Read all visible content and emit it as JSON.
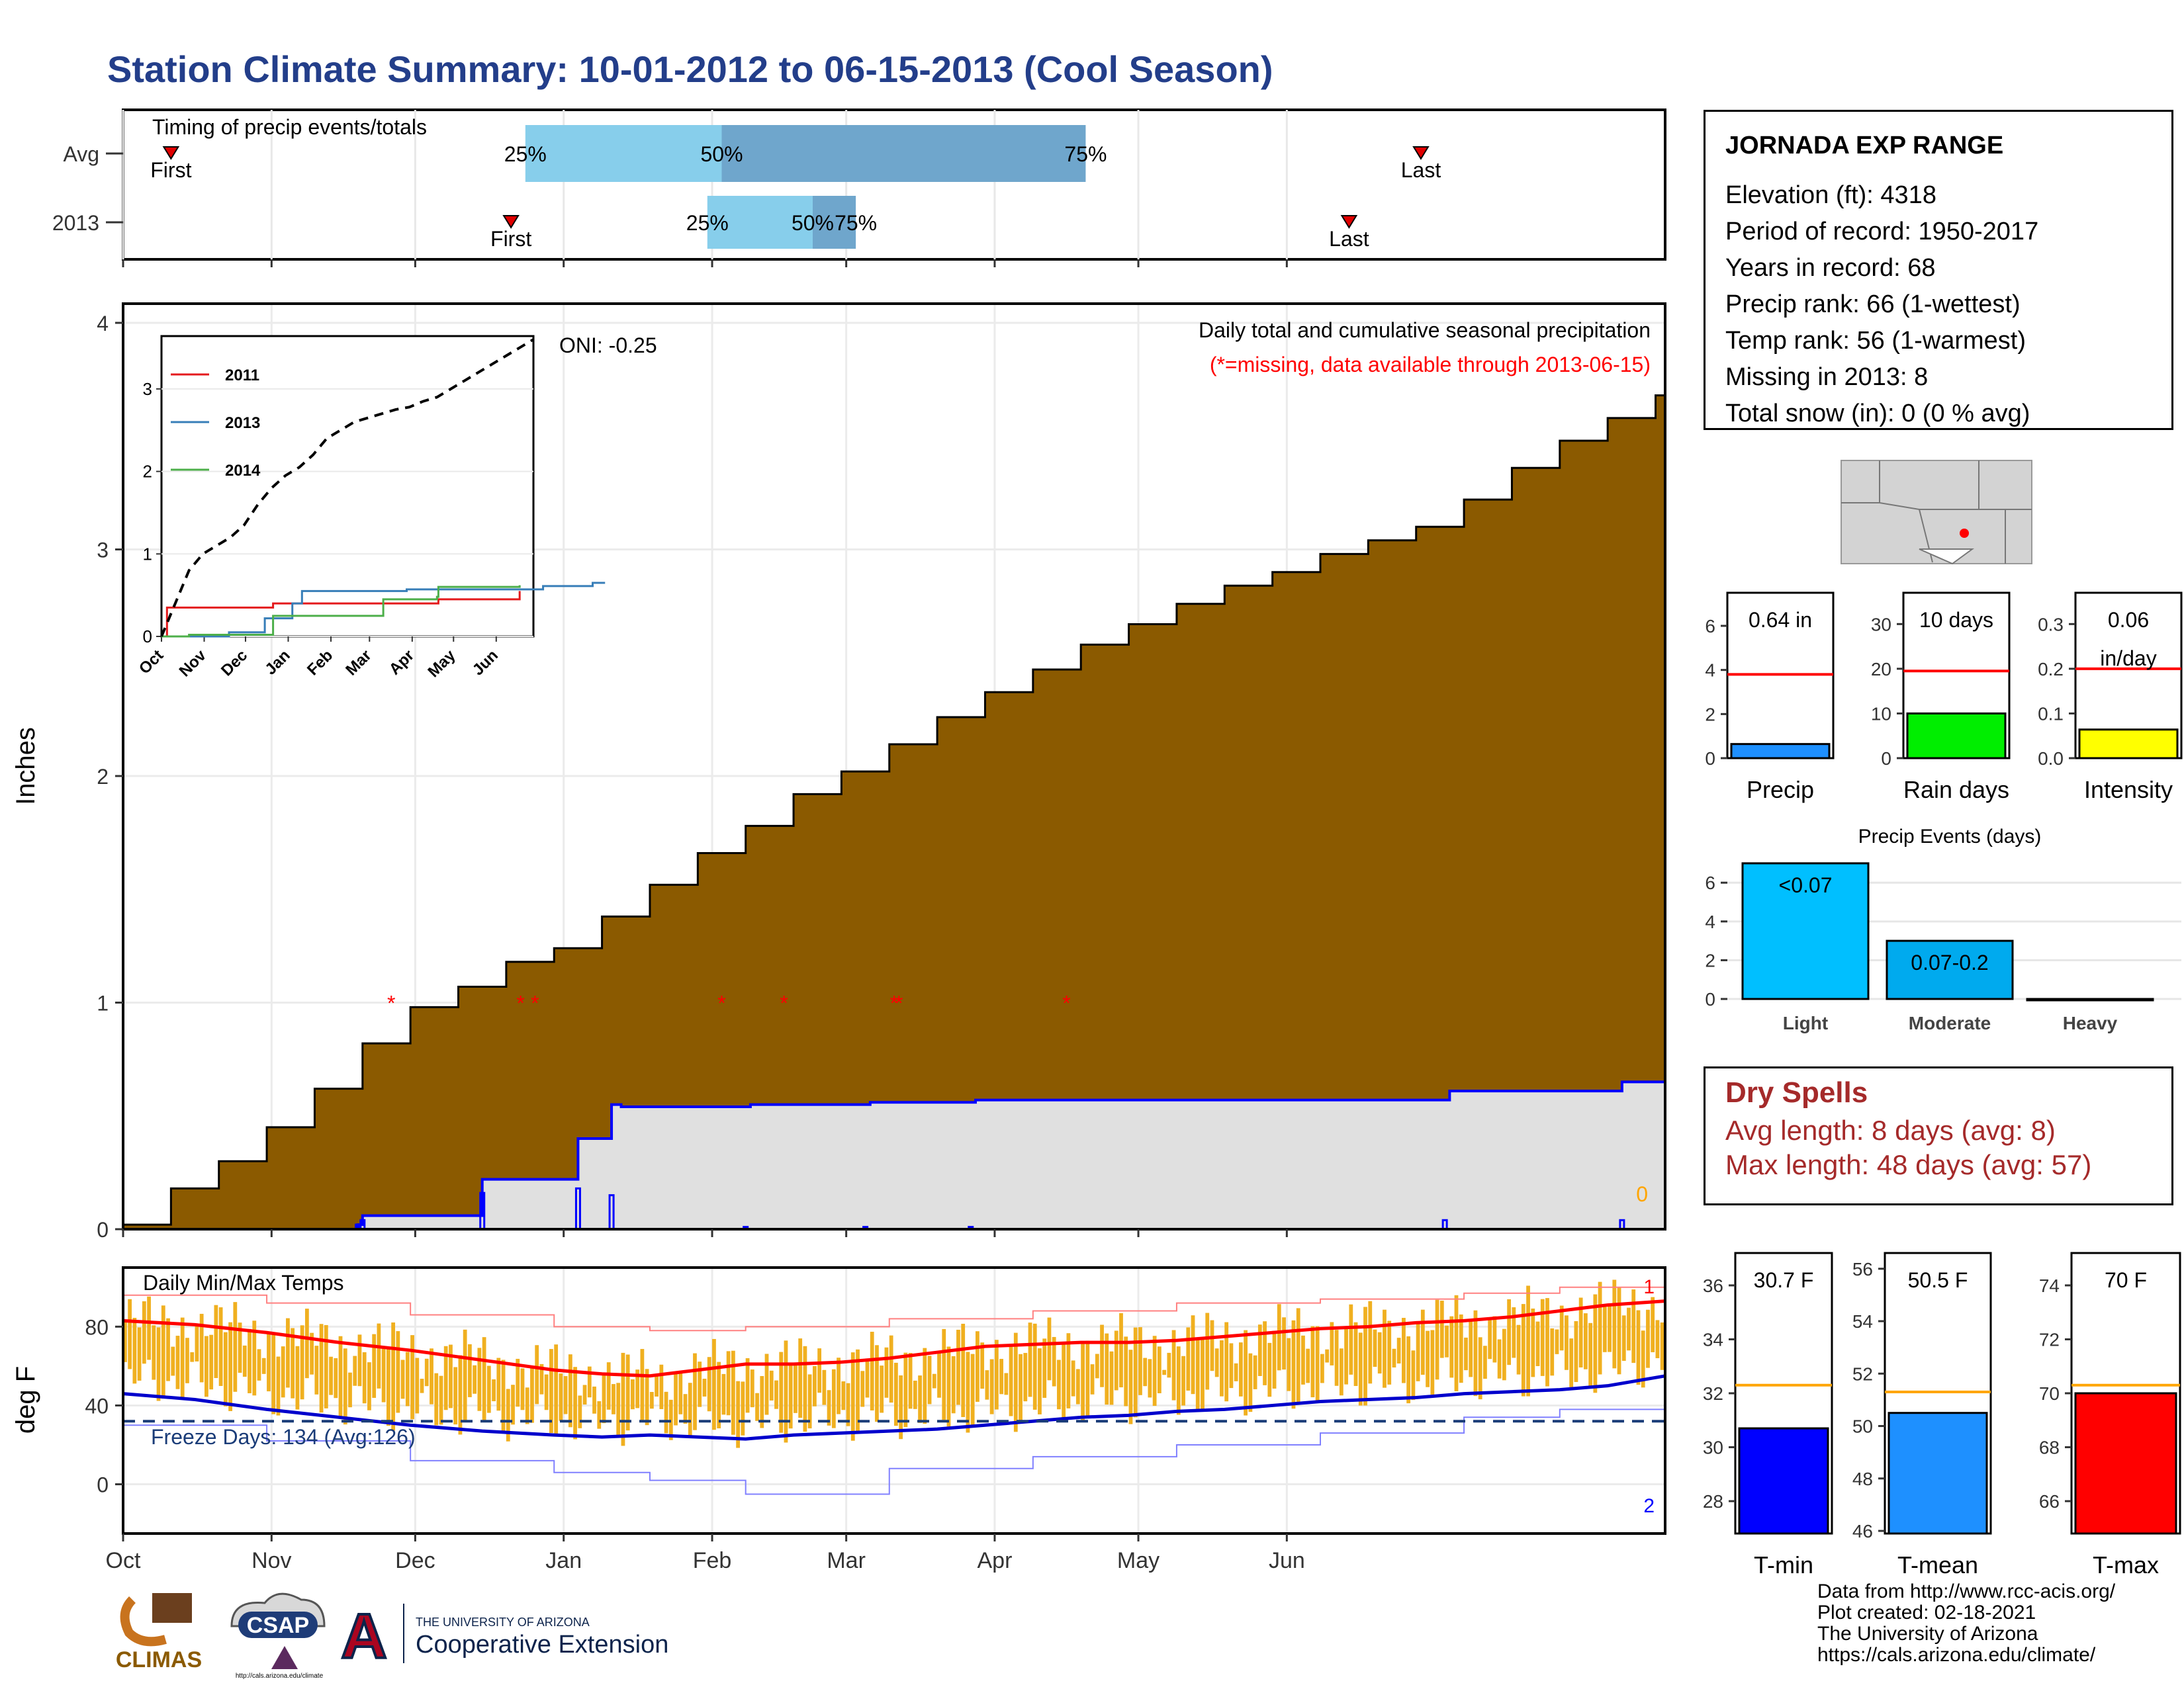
{
  "page_title": "Station Climate Summary: 10-01-2012 to 06-15-2013 (Cool Season)",
  "station": {
    "name": "JORNADA EXP RANGE",
    "lines": [
      "Elevation (ft): 4318",
      "Period of record: 1950-2017",
      "Years in record: 68",
      "Precip rank: 66 (1-wettest)",
      "Temp rank: 56 (1-warmest)",
      "Missing in 2013: 8",
      "Total snow (in): 0 (0 % avg)"
    ]
  },
  "dry_spells": {
    "title": "Dry Spells",
    "avg_length": "Avg length: 8 days (avg: 8)",
    "max_length": "Max length: 48 days (avg: 57)"
  },
  "credits": [
    "Data from http://www.rcc-acis.org/",
    "Plot created: 02-18-2021",
    "The University of Arizona",
    "https://cals.arizona.edu/climate/"
  ],
  "logos": {
    "climas": "CLIMAS",
    "csap": "CSAP",
    "csap_url": "http://cals.arizona.edu/climate",
    "ua_letter": "A",
    "ua_line1": "THE UNIVERSITY OF ARIZONA",
    "ua_line2": "Cooperative Extension"
  },
  "colors": {
    "title": "#233e8a",
    "cumulative_fill": "#8b5a00",
    "avg_fill": "#e0e0e0",
    "avg_line": "#0000ff",
    "tmax": "#ff0000",
    "tmin": "#0000cc",
    "temp_bars": "#f0b020",
    "light_blue": "#87ceeb",
    "steel_blue": "#6fa6cc"
  },
  "month_labels": [
    "Oct",
    "Nov",
    "Dec",
    "Jan",
    "Feb",
    "Mar",
    "Apr",
    "May",
    "Jun"
  ],
  "chart_data": [
    {
      "id": "timing",
      "type": "bar",
      "title": "Timing of precip events/totals",
      "x_unit": "day of season (0 = Oct 1, 2012)",
      "rows": [
        {
          "name": "Avg",
          "first": 10,
          "p25": 84,
          "p50": 125,
          "p75": 201,
          "last": 271,
          "labels": [
            "First",
            "25%",
            "50%",
            "75%",
            "Last"
          ]
        },
        {
          "name": "2013",
          "first": 81,
          "p25": 122,
          "p50": 144,
          "p75": 153,
          "last": 256,
          "labels": [
            "First",
            "25%",
            "50%",
            "75%",
            "Last"
          ]
        }
      ]
    },
    {
      "id": "precip",
      "type": "area",
      "title": "Daily total and cumulative seasonal precipitation",
      "subtitle": "(*=missing, data available through 2013-06-15)",
      "ylabel": "Inches",
      "ylim": [
        0,
        4
      ],
      "yticks": [
        0,
        1,
        2,
        3,
        4
      ],
      "annotation": "ONI: -0.25",
      "corner_label": "0",
      "avg_cumulative": [
        [
          0,
          0.02
        ],
        [
          10,
          0.18
        ],
        [
          20,
          0.3
        ],
        [
          30,
          0.45
        ],
        [
          40,
          0.62
        ],
        [
          50,
          0.82
        ],
        [
          60,
          0.98
        ],
        [
          70,
          1.07
        ],
        [
          80,
          1.18
        ],
        [
          90,
          1.24
        ],
        [
          100,
          1.38
        ],
        [
          110,
          1.52
        ],
        [
          120,
          1.66
        ],
        [
          130,
          1.78
        ],
        [
          140,
          1.92
        ],
        [
          150,
          2.02
        ],
        [
          160,
          2.14
        ],
        [
          170,
          2.26
        ],
        [
          180,
          2.37
        ],
        [
          190,
          2.47
        ],
        [
          200,
          2.58
        ],
        [
          210,
          2.67
        ],
        [
          220,
          2.76
        ],
        [
          230,
          2.84
        ],
        [
          240,
          2.9
        ],
        [
          250,
          2.98
        ],
        [
          260,
          3.04
        ],
        [
          270,
          3.1
        ],
        [
          280,
          3.22
        ],
        [
          290,
          3.36
        ],
        [
          300,
          3.48
        ],
        [
          310,
          3.58
        ],
        [
          320,
          3.68
        ],
        [
          322,
          3.7
        ]
      ],
      "obs_cumulative": [
        [
          0,
          0
        ],
        [
          40,
          0
        ],
        [
          49,
          0.02
        ],
        [
          50,
          0.06
        ],
        [
          74,
          0.06
        ],
        [
          75,
          0.22
        ],
        [
          94,
          0.22
        ],
        [
          95,
          0.4
        ],
        [
          101,
          0.4
        ],
        [
          102,
          0.55
        ],
        [
          103,
          0.55
        ],
        [
          104,
          0.54
        ],
        [
          130,
          0.54
        ],
        [
          131,
          0.55
        ],
        [
          155,
          0.55
        ],
        [
          156,
          0.56
        ],
        [
          177,
          0.56
        ],
        [
          178,
          0.57
        ],
        [
          276,
          0.57
        ],
        [
          277,
          0.61
        ],
        [
          312,
          0.61
        ],
        [
          313,
          0.65
        ],
        [
          322,
          0.65
        ]
      ],
      "daily_precip": [
        [
          49,
          0.02
        ],
        [
          50,
          0.04
        ],
        [
          75,
          0.16
        ],
        [
          95,
          0.18
        ],
        [
          102,
          0.15
        ],
        [
          130,
          0.01
        ],
        [
          155,
          0.01
        ],
        [
          177,
          0.01
        ],
        [
          276,
          0.04
        ],
        [
          313,
          0.04
        ]
      ],
      "missing_days": [
        56,
        83,
        86,
        125,
        138,
        161,
        162,
        197
      ]
    },
    {
      "id": "precip-inset",
      "type": "line",
      "xticks": [
        "Oct",
        "Nov",
        "Dec",
        "Jan",
        "Feb",
        "Mar",
        "Apr",
        "May",
        "Jun"
      ],
      "yticks": [
        0,
        1,
        2,
        3
      ],
      "series": [
        {
          "name": "2011",
          "color": "#e41a1c",
          "points": [
            [
              0,
              0
            ],
            [
              4,
              0.35
            ],
            [
              80,
              0.35
            ],
            [
              81,
              0.4
            ],
            [
              200,
              0.4
            ],
            [
              201,
              0.45
            ],
            [
              258,
              0.45
            ],
            [
              260,
              0.55
            ]
          ]
        },
        {
          "name": "2013",
          "color": "#377eb8",
          "points": [
            [
              0,
              0
            ],
            [
              49,
              0.05
            ],
            [
              75,
              0.22
            ],
            [
              95,
              0.4
            ],
            [
              102,
              0.55
            ],
            [
              178,
              0.57
            ],
            [
              277,
              0.61
            ],
            [
              313,
              0.65
            ],
            [
              322,
              0.65
            ]
          ]
        },
        {
          "name": "2014",
          "color": "#4daf4a",
          "points": [
            [
              0,
              0
            ],
            [
              20,
              0.02
            ],
            [
              80,
              0.02
            ],
            [
              81,
              0.25
            ],
            [
              160,
              0.25
            ],
            [
              161,
              0.45
            ],
            [
              200,
              0.48
            ],
            [
              201,
              0.6
            ],
            [
              260,
              0.62
            ]
          ]
        },
        {
          "name": "",
          "color": "#000000",
          "dashed": true,
          "points": [
            [
              0,
              0
            ],
            [
              10,
              0.4
            ],
            [
              20,
              0.8
            ],
            [
              30,
              1.0
            ],
            [
              40,
              1.1
            ],
            [
              50,
              1.2
            ],
            [
              60,
              1.35
            ],
            [
              70,
              1.6
            ],
            [
              80,
              1.8
            ],
            [
              90,
              1.95
            ],
            [
              100,
              2.05
            ],
            [
              110,
              2.2
            ],
            [
              120,
              2.4
            ],
            [
              130,
              2.5
            ],
            [
              140,
              2.6
            ],
            [
              150,
              2.65
            ],
            [
              160,
              2.7
            ],
            [
              170,
              2.75
            ],
            [
              180,
              2.78
            ],
            [
              190,
              2.85
            ],
            [
              200,
              2.9
            ],
            [
              210,
              3.0
            ],
            [
              220,
              3.1
            ],
            [
              230,
              3.2
            ],
            [
              240,
              3.3
            ],
            [
              250,
              3.4
            ],
            [
              260,
              3.5
            ],
            [
              270,
              3.6
            ]
          ]
        }
      ]
    },
    {
      "id": "temps",
      "type": "bar",
      "title": "Daily Min/Max Temps",
      "ylabel": "deg F",
      "ylim": [
        -25,
        110
      ],
      "yticks": [
        0,
        40,
        80
      ],
      "freeze_label": "Freeze Days: 134 (Avg:126)",
      "freeze_level": 32,
      "corner_top": "1",
      "corner_bottom": "2",
      "avg_tmax": [
        [
          0,
          83
        ],
        [
          15,
          81
        ],
        [
          30,
          77
        ],
        [
          45,
          72
        ],
        [
          60,
          68
        ],
        [
          75,
          63
        ],
        [
          90,
          58
        ],
        [
          100,
          56
        ],
        [
          110,
          55
        ],
        [
          120,
          58
        ],
        [
          130,
          61
        ],
        [
          140,
          61
        ],
        [
          150,
          62
        ],
        [
          160,
          64
        ],
        [
          170,
          67
        ],
        [
          180,
          70
        ],
        [
          190,
          71
        ],
        [
          200,
          72
        ],
        [
          210,
          72
        ],
        [
          220,
          73
        ],
        [
          230,
          75
        ],
        [
          240,
          77
        ],
        [
          250,
          79
        ],
        [
          260,
          80
        ],
        [
          270,
          82
        ],
        [
          280,
          83
        ],
        [
          290,
          85
        ],
        [
          300,
          88
        ],
        [
          310,
          91
        ],
        [
          322,
          93
        ]
      ],
      "avg_tmin": [
        [
          0,
          46
        ],
        [
          15,
          43
        ],
        [
          30,
          38
        ],
        [
          45,
          34
        ],
        [
          60,
          30
        ],
        [
          75,
          27
        ],
        [
          90,
          25
        ],
        [
          100,
          24
        ],
        [
          110,
          25
        ],
        [
          120,
          24
        ],
        [
          130,
          23
        ],
        [
          140,
          25
        ],
        [
          150,
          26
        ],
        [
          160,
          27
        ],
        [
          170,
          28
        ],
        [
          180,
          30
        ],
        [
          190,
          32
        ],
        [
          200,
          34
        ],
        [
          210,
          35
        ],
        [
          220,
          37
        ],
        [
          230,
          38
        ],
        [
          240,
          40
        ],
        [
          250,
          42
        ],
        [
          260,
          43
        ],
        [
          270,
          44
        ],
        [
          280,
          46
        ],
        [
          290,
          47
        ],
        [
          300,
          48
        ],
        [
          310,
          50
        ],
        [
          322,
          55
        ]
      ],
      "rec_max": [
        [
          0,
          96
        ],
        [
          30,
          92
        ],
        [
          60,
          86
        ],
        [
          90,
          80
        ],
        [
          110,
          78
        ],
        [
          130,
          80
        ],
        [
          160,
          84
        ],
        [
          190,
          88
        ],
        [
          220,
          92
        ],
        [
          250,
          94
        ],
        [
          280,
          97
        ],
        [
          300,
          100
        ],
        [
          322,
          104
        ]
      ],
      "rec_min": [
        [
          0,
          30
        ],
        [
          30,
          22
        ],
        [
          60,
          12
        ],
        [
          90,
          6
        ],
        [
          110,
          2
        ],
        [
          130,
          -5
        ],
        [
          160,
          8
        ],
        [
          190,
          14
        ],
        [
          220,
          20
        ],
        [
          250,
          26
        ],
        [
          280,
          34
        ],
        [
          300,
          38
        ],
        [
          322,
          42
        ]
      ]
    },
    {
      "id": "bar-precip",
      "type": "bar",
      "categories": [
        "Precip"
      ],
      "values": [
        0.64
      ],
      "label": "0.64 in",
      "avg": 3.8,
      "ylim": [
        0,
        7.5
      ],
      "yticks": [
        0,
        2,
        4,
        6
      ]
    },
    {
      "id": "bar-raindays",
      "type": "bar",
      "categories": [
        "Rain days"
      ],
      "values": [
        10
      ],
      "label": "10 days",
      "avg": 19.5,
      "ylim": [
        0,
        37
      ],
      "yticks": [
        0,
        10,
        20,
        30
      ]
    },
    {
      "id": "bar-intensity",
      "type": "bar",
      "categories": [
        "Intensity"
      ],
      "values": [
        0.064
      ],
      "label": "0.06 in/day",
      "avg": 0.2,
      "ylim": [
        0,
        0.37
      ],
      "yticks": [
        "0.0",
        "0.1",
        "0.2",
        "0.3"
      ]
    },
    {
      "id": "precip-events",
      "type": "bar",
      "title": "Precip Events (days)",
      "categories": [
        "Light",
        "Moderate",
        "Heavy"
      ],
      "values": [
        7,
        3,
        0
      ],
      "bar_labels": [
        "<0.07",
        "0.07-0.2",
        ""
      ],
      "ylim": [
        0,
        7.1
      ],
      "yticks": [
        0,
        2,
        4,
        6
      ]
    },
    {
      "id": "bar-tmin",
      "type": "bar",
      "categories": [
        "T-min"
      ],
      "values": [
        30.7
      ],
      "label": "30.7 F",
      "avg": 32.3,
      "ylim": [
        26.8,
        37.2
      ],
      "yticks": [
        28,
        30,
        32,
        34,
        36
      ]
    },
    {
      "id": "bar-tmean",
      "type": "bar",
      "categories": [
        "T-mean"
      ],
      "values": [
        50.5
      ],
      "label": "50.5 F",
      "avg": 51.3,
      "ylim": [
        45.9,
        56.6
      ],
      "yticks": [
        46,
        48,
        50,
        52,
        54,
        56
      ]
    },
    {
      "id": "bar-tmax",
      "type": "bar",
      "categories": [
        "T-max"
      ],
      "values": [
        70
      ],
      "label": "70 F",
      "avg": 70.3,
      "ylim": [
        64.8,
        75.2
      ],
      "yticks": [
        66,
        68,
        70,
        72,
        74
      ]
    }
  ]
}
